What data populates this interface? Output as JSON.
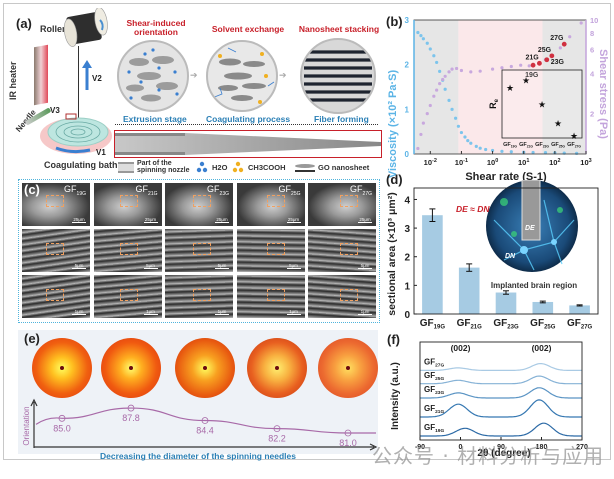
{
  "figure": {
    "panel_labels": [
      "(a)",
      "(b)",
      "(c)",
      "(d)",
      "(e)",
      "(f)"
    ],
    "watermark": "公众号 · 材料分析与应用"
  },
  "panel_a": {
    "roller_label": "Roller",
    "heater_label": "IR heater",
    "needle_label": "Needle",
    "bath_label": "Coagulating bath",
    "v1": "V1",
    "v2": "V2",
    "v3": "V3",
    "stages": [
      {
        "title": "Shear-induced orientation",
        "stage": "Extrusion stage"
      },
      {
        "title": "Solvent exchange",
        "stage": "Coagulating process"
      },
      {
        "title": "Nanosheet stacking",
        "stage": "Fiber forming"
      }
    ],
    "legend": {
      "nozzle": "Part of the spinning nozzle",
      "water": "H2O",
      "acetic": "CH3COOH",
      "go": "GO nanosheet"
    },
    "colors": {
      "title_red": "#c8202a",
      "stage_blue": "#2a7fb5",
      "water": "#3a7fd0",
      "acetic": "#f0b020"
    }
  },
  "panel_c": {
    "samples": [
      "GF19G",
      "GF21G",
      "GF23G",
      "GF25G",
      "GF27G"
    ],
    "scale_rows": [
      [
        "25μm",
        "25μm",
        "25μm",
        "25μm",
        "25μm"
      ],
      [
        "5μm",
        "5μm",
        "5μm",
        "5μm",
        "5μm"
      ],
      [
        "1μm",
        "1μm",
        "1μm",
        "1μm",
        "1μm"
      ]
    ]
  },
  "panel_d_extra": {
    "equation": "DE ≈ DN",
    "inset_label": "Implanted brain region",
    "de": "DE",
    "dn": "DN"
  },
  "panel_e": {
    "orientation_label": "Orientation",
    "axis_caption": "Decreasing the diameter of the spinning needles"
  },
  "chart_data": [
    {
      "id": "b",
      "type": "scatter",
      "title": "",
      "xlabel": "Shear rate (S-1)",
      "ylabel": "Viscosity (×10² Pa·S)",
      "y2label": "Shear stress (Pa)",
      "xscale": "log",
      "xlim": [
        0.003,
        1000
      ],
      "ylim": [
        0,
        3
      ],
      "y2lim": [
        1,
        10
      ],
      "xticks": [
        "10-2",
        "10-1",
        "100",
        "101",
        "102",
        "103"
      ],
      "xtick_values": [
        0.01,
        0.1,
        1,
        10,
        100,
        1000
      ],
      "yticks": [
        0,
        1,
        2,
        3
      ],
      "y2ticks": [
        2,
        4,
        6,
        8,
        10
      ],
      "regions": [
        {
          "from": 0.003,
          "to": 0.08,
          "color": "#e6e6e6"
        },
        {
          "from": 0.08,
          "to": 40,
          "color": "#fbe8ea"
        },
        {
          "from": 40,
          "to": 1000,
          "color": "#e6e6e6"
        }
      ],
      "series": [
        {
          "name": "Viscosity",
          "axis": "left",
          "color": "#7cc4ec",
          "x": [
            0.004,
            0.005,
            0.006,
            0.008,
            0.01,
            0.013,
            0.016,
            0.02,
            0.025,
            0.03,
            0.04,
            0.05,
            0.065,
            0.08,
            0.1,
            0.13,
            0.16,
            0.2,
            0.3,
            0.4,
            0.6,
            1,
            2,
            4,
            10,
            20,
            50,
            100,
            200,
            500
          ],
          "y": [
            2.72,
            2.65,
            2.58,
            2.48,
            2.35,
            2.2,
            2.05,
            1.85,
            1.65,
            1.45,
            1.2,
            1.0,
            0.8,
            0.62,
            0.48,
            0.38,
            0.3,
            0.24,
            0.17,
            0.13,
            0.1,
            0.08,
            0.06,
            0.05,
            0.04,
            0.035,
            0.03,
            0.025,
            0.02,
            0.015
          ]
        },
        {
          "name": "Shear stress",
          "axis": "right",
          "color": "#c8a8de",
          "x": [
            0.004,
            0.005,
            0.006,
            0.008,
            0.01,
            0.013,
            0.016,
            0.02,
            0.025,
            0.03,
            0.04,
            0.05,
            0.07,
            0.1,
            0.2,
            0.4,
            1,
            2,
            4,
            8,
            15,
            20,
            30,
            50,
            80,
            150,
            300,
            700
          ],
          "y": [
            1.1,
            1.4,
            1.7,
            2.0,
            2.3,
            2.7,
            3.0,
            3.35,
            3.6,
            3.8,
            4.1,
            4.3,
            4.35,
            4.2,
            4.1,
            4.15,
            4.3,
            4.4,
            4.5,
            4.6,
            4.55,
            4.6,
            4.75,
            5.05,
            5.4,
            6.2,
            7.5,
            9.5
          ]
        }
      ],
      "annotations": [
        {
          "label": "19G",
          "x": 20,
          "y2": 4.6
        },
        {
          "label": "21G",
          "x": 32,
          "y2": 4.75
        },
        {
          "label": "23G",
          "x": 55,
          "y2": 5.05
        },
        {
          "label": "25G",
          "x": 80,
          "y2": 5.4
        },
        {
          "label": "27G",
          "x": 200,
          "y2": 6.6
        }
      ],
      "inset": {
        "ylabel": "Re",
        "categories": [
          "GF19G",
          "GF21G",
          "GF23G",
          "GF25G",
          "GF27G"
        ],
        "values": [
          0.048,
          0.055,
          0.032,
          0.014,
          0.002
        ],
        "ylim": [
          0,
          0.065
        ]
      }
    },
    {
      "id": "d",
      "type": "bar",
      "title": "",
      "xlabel": "",
      "ylabel": "sectional area (×10³ μm²)",
      "categories": [
        "GF19G",
        "GF21G",
        "GF23G",
        "GF25G",
        "GF27G"
      ],
      "values": [
        3.45,
        1.62,
        0.75,
        0.42,
        0.3
      ],
      "errors": [
        0.22,
        0.13,
        0.06,
        0.03,
        0.02
      ],
      "ylim": [
        0,
        4.4
      ],
      "yticks": [
        0,
        1,
        2,
        3,
        4
      ],
      "bar_color": "#a6cbe3"
    },
    {
      "id": "e",
      "type": "line",
      "title": "",
      "xlabel": "Decreasing the diameter of the spinning needles",
      "ylabel": "Orientation",
      "categories": [
        "GF19G",
        "GF21G",
        "GF23G",
        "GF25G",
        "GF27G"
      ],
      "values": [
        85.0,
        87.8,
        84.4,
        82.2,
        81.0
      ],
      "value_labels": [
        "85.0",
        "87.8",
        "84.4",
        "82.2",
        "81.0"
      ],
      "color": "#a86aa8"
    },
    {
      "id": "f",
      "type": "line",
      "title": "",
      "xlabel": "2θ (degree)",
      "ylabel": "Intensity (a.u.)",
      "xlim": [
        -90,
        270
      ],
      "xticks": [
        -90,
        0,
        90,
        180,
        270
      ],
      "peak_labels": [
        {
          "text": "(002)",
          "x": 0
        },
        {
          "text": "(002)",
          "x": 180
        }
      ],
      "series": [
        {
          "name": "GF19G",
          "offset": 0,
          "amp1": 0.45,
          "amp2": 0.75,
          "c1": 10,
          "c2": 185,
          "color": "#2c6aa6"
        },
        {
          "name": "GF21G",
          "offset": 1,
          "amp1": 0.75,
          "amp2": 1.0,
          "c1": -5,
          "c2": 175,
          "color": "#3678b2"
        },
        {
          "name": "GF23G",
          "offset": 2,
          "amp1": 0.3,
          "amp2": 0.6,
          "c1": -5,
          "c2": 175,
          "color": "#5a94c4"
        },
        {
          "name": "GF25G",
          "offset": 2.75,
          "amp1": 0.2,
          "amp2": 0.45,
          "c1": -5,
          "c2": 175,
          "color": "#86b2d6"
        },
        {
          "name": "GF27G",
          "offset": 3.45,
          "amp1": 0.15,
          "amp2": 0.4,
          "c1": -5,
          "c2": 178,
          "color": "#a9cae4"
        }
      ]
    }
  ]
}
